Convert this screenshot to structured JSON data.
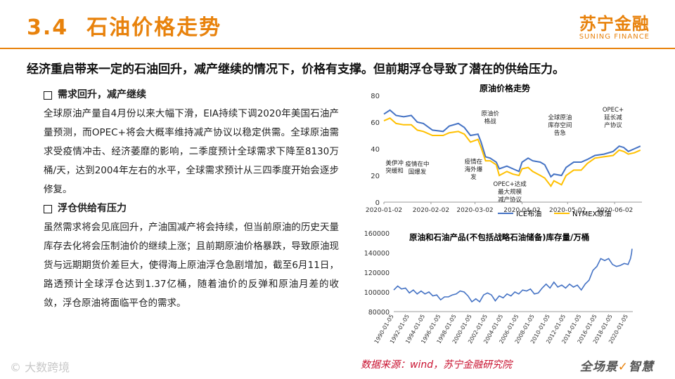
{
  "header": {
    "section_no": "3.4",
    "title": "石油价格走势",
    "brand_cn": "苏宁金融",
    "brand_en": "SUNING FINANCE"
  },
  "headline": "经济重启带来一定的石油回升，减产继续的情况下，价格有支撑。但前期浮仓导致了潜在的供给压力。",
  "sections": [
    {
      "heading": "需求回升，减产继续",
      "body": "全球原油产量自4月份以来大幅下滑，EIA持续下调2020年美国石油产量预测，而OPEC+将会大概率维持减产协议以稳定供需。全球原油需求受疫情冲击、经济萎靡的影响，二季度预计全球需求下降至8130万桶/天，达到2004年左右的水平，全球需求预计从三四季度开始会逐步修复。"
    },
    {
      "heading": "浮仓供给有压力",
      "body": "虽然需求将会见底回升，产油国减产将会持续，但当前原油的历史天量库存去化将会压制油价的继续上涨；且前期原油价格暴跌，导致原油现货与远期期货价差巨大，使得海上原油浮仓急剧增加，截至6月11日，路透预计全球浮仓达到1.37亿桶，随着油价的反弹和原油月差的收敛，浮仓原油将面临平仓的需求。"
    }
  ],
  "footer": {
    "source": "数据来源：wind，苏宁金融研究院",
    "slogan_a": "全场景",
    "slogan_b": "智慧",
    "watermark": "© 大数跨境"
  },
  "colors": {
    "accent": "#e8820c",
    "ice": "#4472c4",
    "nymex": "#ffc000",
    "inventory": "#4472c4"
  },
  "chart_data": [
    {
      "type": "line",
      "title": "原油价格走势",
      "x_ticks": [
        "2020-01-02",
        "2020-02-02",
        "2020-03-02",
        "2020-04-02",
        "2020-05-02",
        "2020-06-02"
      ],
      "y_ticks": [
        0,
        20,
        40,
        60,
        80
      ],
      "ylim": [
        0,
        80
      ],
      "x_range": [
        "2020-01-02",
        "2020-06-20"
      ],
      "grid": false,
      "legend_position": "bottom",
      "series": [
        {
          "name": "ICE布油",
          "color": "#4472c4",
          "points": [
            [
              "2020-01-02",
              66
            ],
            [
              "2020-01-06",
              69
            ],
            [
              "2020-01-10",
              65
            ],
            [
              "2020-01-15",
              64
            ],
            [
              "2020-01-20",
              65
            ],
            [
              "2020-01-24",
              60
            ],
            [
              "2020-01-28",
              59
            ],
            [
              "2020-02-03",
              54
            ],
            [
              "2020-02-10",
              53
            ],
            [
              "2020-02-14",
              57
            ],
            [
              "2020-02-20",
              59
            ],
            [
              "2020-02-24",
              56
            ],
            [
              "2020-02-28",
              50
            ],
            [
              "2020-03-04",
              51
            ],
            [
              "2020-03-06",
              45
            ],
            [
              "2020-03-09",
              34
            ],
            [
              "2020-03-12",
              33
            ],
            [
              "2020-03-16",
              30
            ],
            [
              "2020-03-18",
              25
            ],
            [
              "2020-03-23",
              27
            ],
            [
              "2020-03-27",
              25
            ],
            [
              "2020-03-31",
              23
            ],
            [
              "2020-04-02",
              30
            ],
            [
              "2020-04-06",
              33
            ],
            [
              "2020-04-09",
              31
            ],
            [
              "2020-04-14",
              30
            ],
            [
              "2020-04-17",
              28
            ],
            [
              "2020-04-21",
              19
            ],
            [
              "2020-04-23",
              21
            ],
            [
              "2020-04-28",
              20
            ],
            [
              "2020-05-01",
              26
            ],
            [
              "2020-05-06",
              30
            ],
            [
              "2020-05-11",
              30
            ],
            [
              "2020-05-15",
              32
            ],
            [
              "2020-05-20",
              35
            ],
            [
              "2020-05-26",
              36
            ],
            [
              "2020-06-01",
              38
            ],
            [
              "2020-06-05",
              42
            ],
            [
              "2020-06-08",
              41
            ],
            [
              "2020-06-11",
              38
            ],
            [
              "2020-06-15",
              40
            ],
            [
              "2020-06-19",
              42
            ]
          ]
        },
        {
          "name": "NYMEX原油",
          "color": "#ffc000",
          "points": [
            [
              "2020-01-02",
              61
            ],
            [
              "2020-01-06",
              63
            ],
            [
              "2020-01-10",
              59
            ],
            [
              "2020-01-15",
              58
            ],
            [
              "2020-01-20",
              58
            ],
            [
              "2020-01-24",
              54
            ],
            [
              "2020-01-28",
              53
            ],
            [
              "2020-02-03",
              50
            ],
            [
              "2020-02-10",
              50
            ],
            [
              "2020-02-14",
              52
            ],
            [
              "2020-02-20",
              53
            ],
            [
              "2020-02-24",
              51
            ],
            [
              "2020-02-28",
              45
            ],
            [
              "2020-03-04",
              47
            ],
            [
              "2020-03-06",
              41
            ],
            [
              "2020-03-09",
              31
            ],
            [
              "2020-03-12",
              31
            ],
            [
              "2020-03-16",
              28
            ],
            [
              "2020-03-18",
              20
            ],
            [
              "2020-03-23",
              23
            ],
            [
              "2020-03-27",
              21
            ],
            [
              "2020-03-31",
              20
            ],
            [
              "2020-04-02",
              25
            ],
            [
              "2020-04-06",
              26
            ],
            [
              "2020-04-09",
              23
            ],
            [
              "2020-04-14",
              20
            ],
            [
              "2020-04-17",
              18
            ],
            [
              "2020-04-21",
              12
            ],
            [
              "2020-04-23",
              16
            ],
            [
              "2020-04-28",
              13
            ],
            [
              "2020-05-01",
              20
            ],
            [
              "2020-05-06",
              24
            ],
            [
              "2020-05-11",
              24
            ],
            [
              "2020-05-15",
              29
            ],
            [
              "2020-05-20",
              33
            ],
            [
              "2020-05-26",
              34
            ],
            [
              "2020-06-01",
              35
            ],
            [
              "2020-06-05",
              39
            ],
            [
              "2020-06-08",
              38
            ],
            [
              "2020-06-11",
              36
            ],
            [
              "2020-06-15",
              37
            ],
            [
              "2020-06-19",
              39
            ]
          ]
        }
      ],
      "annotations": [
        {
          "text": [
            "美伊冲",
            "突缓和"
          ],
          "date": "2020-01-09",
          "value": 28
        },
        {
          "text": [
            "疫情在中",
            "国爆发"
          ],
          "date": "2020-01-24",
          "value": 27
        },
        {
          "text": [
            "疫情在",
            "海外爆",
            "发"
          ],
          "date": "2020-03-01",
          "value": 29
        },
        {
          "text": [
            "原油价",
            "格战"
          ],
          "date": "2020-03-12",
          "value": 65
        },
        {
          "text": [
            "OPEC+达成",
            "最大规模",
            "减产协议"
          ],
          "date": "2020-03-25",
          "value": 12
        },
        {
          "text": [
            "全球原油",
            "库存空间",
            "告急"
          ],
          "date": "2020-04-27",
          "value": 62
        },
        {
          "text": [
            "OPEC+",
            "延长减",
            "产协议"
          ],
          "date": "2020-06-01",
          "value": 68
        }
      ]
    },
    {
      "type": "line",
      "title": "原油和石油产品(不包括战略石油储备)库存量/万桶",
      "x_ticks": [
        "1990-01-05",
        "1992-01-05",
        "1994-01-05",
        "1996-01-05",
        "1998-01-05",
        "2000-01-05",
        "2002-01-05",
        "2004-01-05",
        "2006-01-05",
        "2008-01-05",
        "2010-01-05",
        "2012-01-05",
        "2014-01-05",
        "2016-01-05",
        "2018-01-05",
        "2020-01-05"
      ],
      "y_ticks": [
        80000,
        100000,
        120000,
        140000,
        160000
      ],
      "ylim": [
        80000,
        160000
      ],
      "x_range": [
        1990,
        2020.6
      ],
      "grid": false,
      "series": [
        {
          "name": "",
          "color": "#4472c4",
          "points": [
            [
              1990,
              102000
            ],
            [
              1990.5,
              106000
            ],
            [
              1991,
              103000
            ],
            [
              1991.5,
              104000
            ],
            [
              1992,
              99000
            ],
            [
              1992.5,
              102000
            ],
            [
              1993,
              98000
            ],
            [
              1993.5,
              101000
            ],
            [
              1994,
              98000
            ],
            [
              1994.5,
              100000
            ],
            [
              1995,
              96000
            ],
            [
              1995.5,
              97000
            ],
            [
              1996,
              92000
            ],
            [
              1996.5,
              95000
            ],
            [
              1997,
              95000
            ],
            [
              1997.5,
              97000
            ],
            [
              1998,
              98000
            ],
            [
              1998.5,
              101000
            ],
            [
              1999,
              100000
            ],
            [
              1999.5,
              96000
            ],
            [
              2000,
              90000
            ],
            [
              2000.5,
              93000
            ],
            [
              2001,
              90000
            ],
            [
              2001.5,
              97000
            ],
            [
              2002,
              99000
            ],
            [
              2002.5,
              97000
            ],
            [
              2003,
              91000
            ],
            [
              2003.5,
              96000
            ],
            [
              2004,
              94000
            ],
            [
              2004.5,
              98000
            ],
            [
              2005,
              96000
            ],
            [
              2005.5,
              100000
            ],
            [
              2006,
              98000
            ],
            [
              2006.5,
              102000
            ],
            [
              2007,
              101000
            ],
            [
              2007.5,
              103000
            ],
            [
              2008,
              98000
            ],
            [
              2008.5,
              99000
            ],
            [
              2009,
              104000
            ],
            [
              2009.5,
              108000
            ],
            [
              2010,
              104000
            ],
            [
              2010.5,
              110000
            ],
            [
              2011,
              105000
            ],
            [
              2011.5,
              107000
            ],
            [
              2012,
              104000
            ],
            [
              2012.5,
              108000
            ],
            [
              2013,
              105000
            ],
            [
              2013.5,
              107000
            ],
            [
              2014,
              102000
            ],
            [
              2014.5,
              108000
            ],
            [
              2015,
              112000
            ],
            [
              2015.5,
              122000
            ],
            [
              2016,
              126000
            ],
            [
              2016.5,
              134000
            ],
            [
              2017,
              132000
            ],
            [
              2017.5,
              134000
            ],
            [
              2018,
              128000
            ],
            [
              2018.5,
              126000
            ],
            [
              2019,
              127000
            ],
            [
              2019.5,
              129000
            ],
            [
              2020,
              128000
            ],
            [
              2020.3,
              134000
            ],
            [
              2020.45,
              140000
            ],
            [
              2020.5,
              144000
            ]
          ]
        }
      ]
    }
  ]
}
